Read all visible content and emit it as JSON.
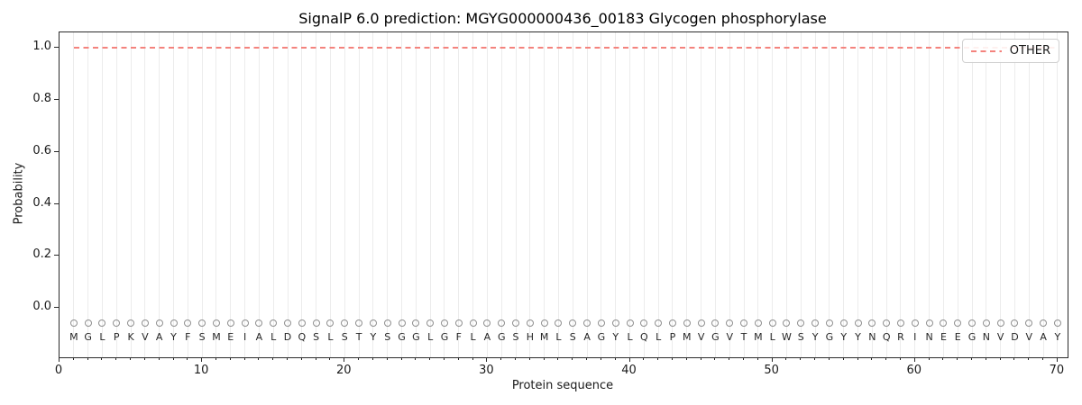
{
  "title": "SignalP 6.0 prediction: MGYG000000436_00183 Glycogen phosphorylase",
  "legend": {
    "position": "top-right",
    "entries": [
      {
        "label": "OTHER",
        "color": "#f4837d",
        "style": "dashed"
      }
    ]
  },
  "chart_data": {
    "type": "line",
    "title": "SignalP 6.0 prediction: MGYG000000436_00183 Glycogen phosphorylase",
    "xlabel": "Protein sequence",
    "ylabel": "Probability",
    "xlim": [
      0,
      70.7
    ],
    "ylim": [
      -0.19,
      1.06
    ],
    "x_ticks": [
      0,
      10,
      20,
      30,
      40,
      50,
      60,
      70
    ],
    "y_ticks": [
      0.0,
      0.2,
      0.4,
      0.6,
      0.8,
      1.0
    ],
    "grid": "vertical gridline at every residue position, no horizontal grid",
    "sequence": "MGLPKVAYFSMEIALDQSLSTYSGGLGFLAGSHMLSAGYLQLPMVGVTMLWSYGYYNQRINEEGNVDVAY",
    "series": [
      {
        "name": "OTHER",
        "style": "dashed",
        "color": "#f4837d",
        "x_start": 1,
        "x_end": 70,
        "constant_value": 1.0,
        "note": "constant probability 1.0 across all 70 residues"
      }
    ],
    "marker_row_value": -0.06,
    "letter_row_value": -0.115,
    "colors": {
      "grid": "#ececec",
      "spine": "#2b2b2b",
      "marker_edge": "#8f8f8f",
      "letter": "#262626",
      "other_line": "#f4837d"
    }
  }
}
